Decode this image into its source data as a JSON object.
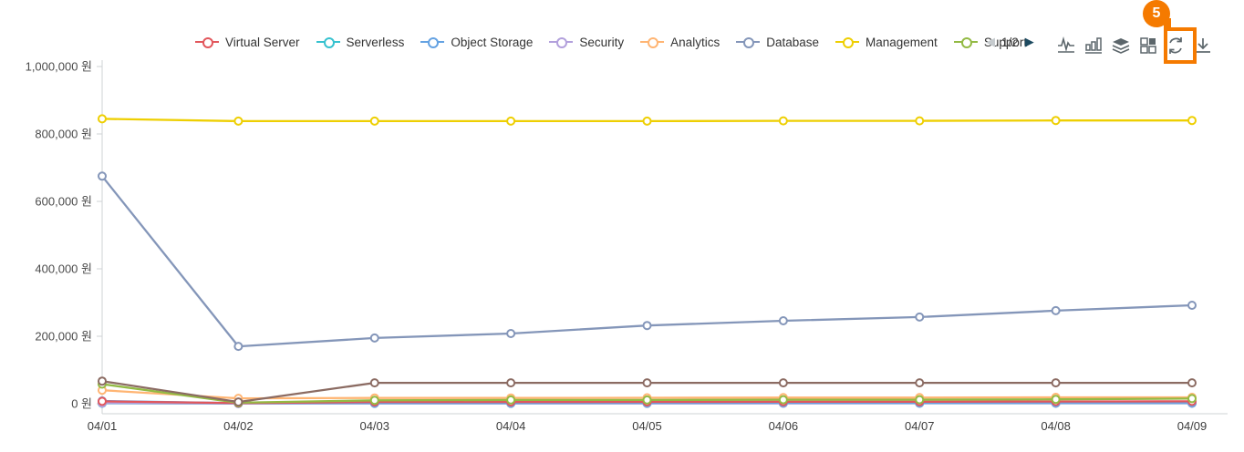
{
  "accent_color": "#f57a00",
  "legend": {
    "items": [
      {
        "label": "Virtual Server",
        "color": "#e2575c"
      },
      {
        "label": "Serverless",
        "color": "#36c2cf"
      },
      {
        "label": "Object Storage",
        "color": "#64a2e2"
      },
      {
        "label": "Security",
        "color": "#b2a0dc"
      },
      {
        "label": "Analytics",
        "color": "#ffb573"
      },
      {
        "label": "Database",
        "color": "#8496b9"
      },
      {
        "label": "Management",
        "color": "#eecf02"
      },
      {
        "label": "Support",
        "color": "#93ba44"
      }
    ],
    "pagination": {
      "page": "1/2",
      "prev_color": "#c6cbce",
      "next_color": "#1d4a60"
    }
  },
  "toolbar": {
    "icons": [
      "line-chart-icon",
      "bar-chart-icon",
      "stacked-layers-icon",
      "grid-view-icon",
      "refresh-icon",
      "download-icon"
    ],
    "icon_color": "#5c666b"
  },
  "badge": {
    "label": "5"
  },
  "chart_data": {
    "type": "line",
    "title": "",
    "xlabel": "",
    "ylabel": "",
    "unit": "원",
    "categories": [
      "04/01",
      "04/02",
      "04/03",
      "04/04",
      "04/05",
      "04/06",
      "04/07",
      "04/08",
      "04/09"
    ],
    "ylim": [
      0,
      1000000
    ],
    "yticks": [
      0,
      200000,
      400000,
      600000,
      800000,
      1000000
    ],
    "ytick_labels": [
      "0 원",
      "200,000 원",
      "400,000 원",
      "600,000 원",
      "800,000 원",
      "1,000,000 원"
    ],
    "grid": false,
    "legend_position": "top",
    "series": [
      {
        "name": "Serverless",
        "color": "#36c2cf",
        "values": [
          1000,
          500,
          800,
          800,
          900,
          1000,
          1000,
          1000,
          1200
        ]
      },
      {
        "name": "Security",
        "color": "#b2a0dc",
        "values": [
          2000,
          500,
          1000,
          1000,
          1000,
          1200,
          1500,
          1500,
          1500
        ]
      },
      {
        "name": "Object Storage",
        "color": "#64a2e2",
        "values": [
          8000,
          1500,
          2500,
          2500,
          3000,
          3000,
          3000,
          3500,
          3500
        ]
      },
      {
        "name": "Virtual Server",
        "color": "#e2575c",
        "values": [
          7000,
          2000,
          5000,
          5000,
          5500,
          6000,
          6000,
          6500,
          7000
        ]
      },
      {
        "name": "Analytics",
        "color": "#ffb573",
        "values": [
          40000,
          16000,
          17000,
          17000,
          17500,
          18000,
          18000,
          19000,
          19000
        ]
      },
      {
        "name": "Support",
        "color": "#93ba44",
        "values": [
          58000,
          3000,
          10000,
          11000,
          11000,
          12000,
          12000,
          13000,
          15000
        ]
      },
      {
        "name": null,
        "color": "#8b6b62",
        "values": [
          67000,
          5000,
          62000,
          62000,
          62000,
          62000,
          62000,
          62000,
          62000
        ]
      },
      {
        "name": "Database",
        "color": "#8496b9",
        "values": [
          675000,
          170000,
          195000,
          208000,
          232000,
          246000,
          257000,
          276000,
          292000
        ]
      },
      {
        "name": "Management",
        "color": "#eecf02",
        "values": [
          845000,
          838000,
          838000,
          838000,
          838000,
          839000,
          839000,
          840000,
          840000
        ]
      }
    ]
  }
}
